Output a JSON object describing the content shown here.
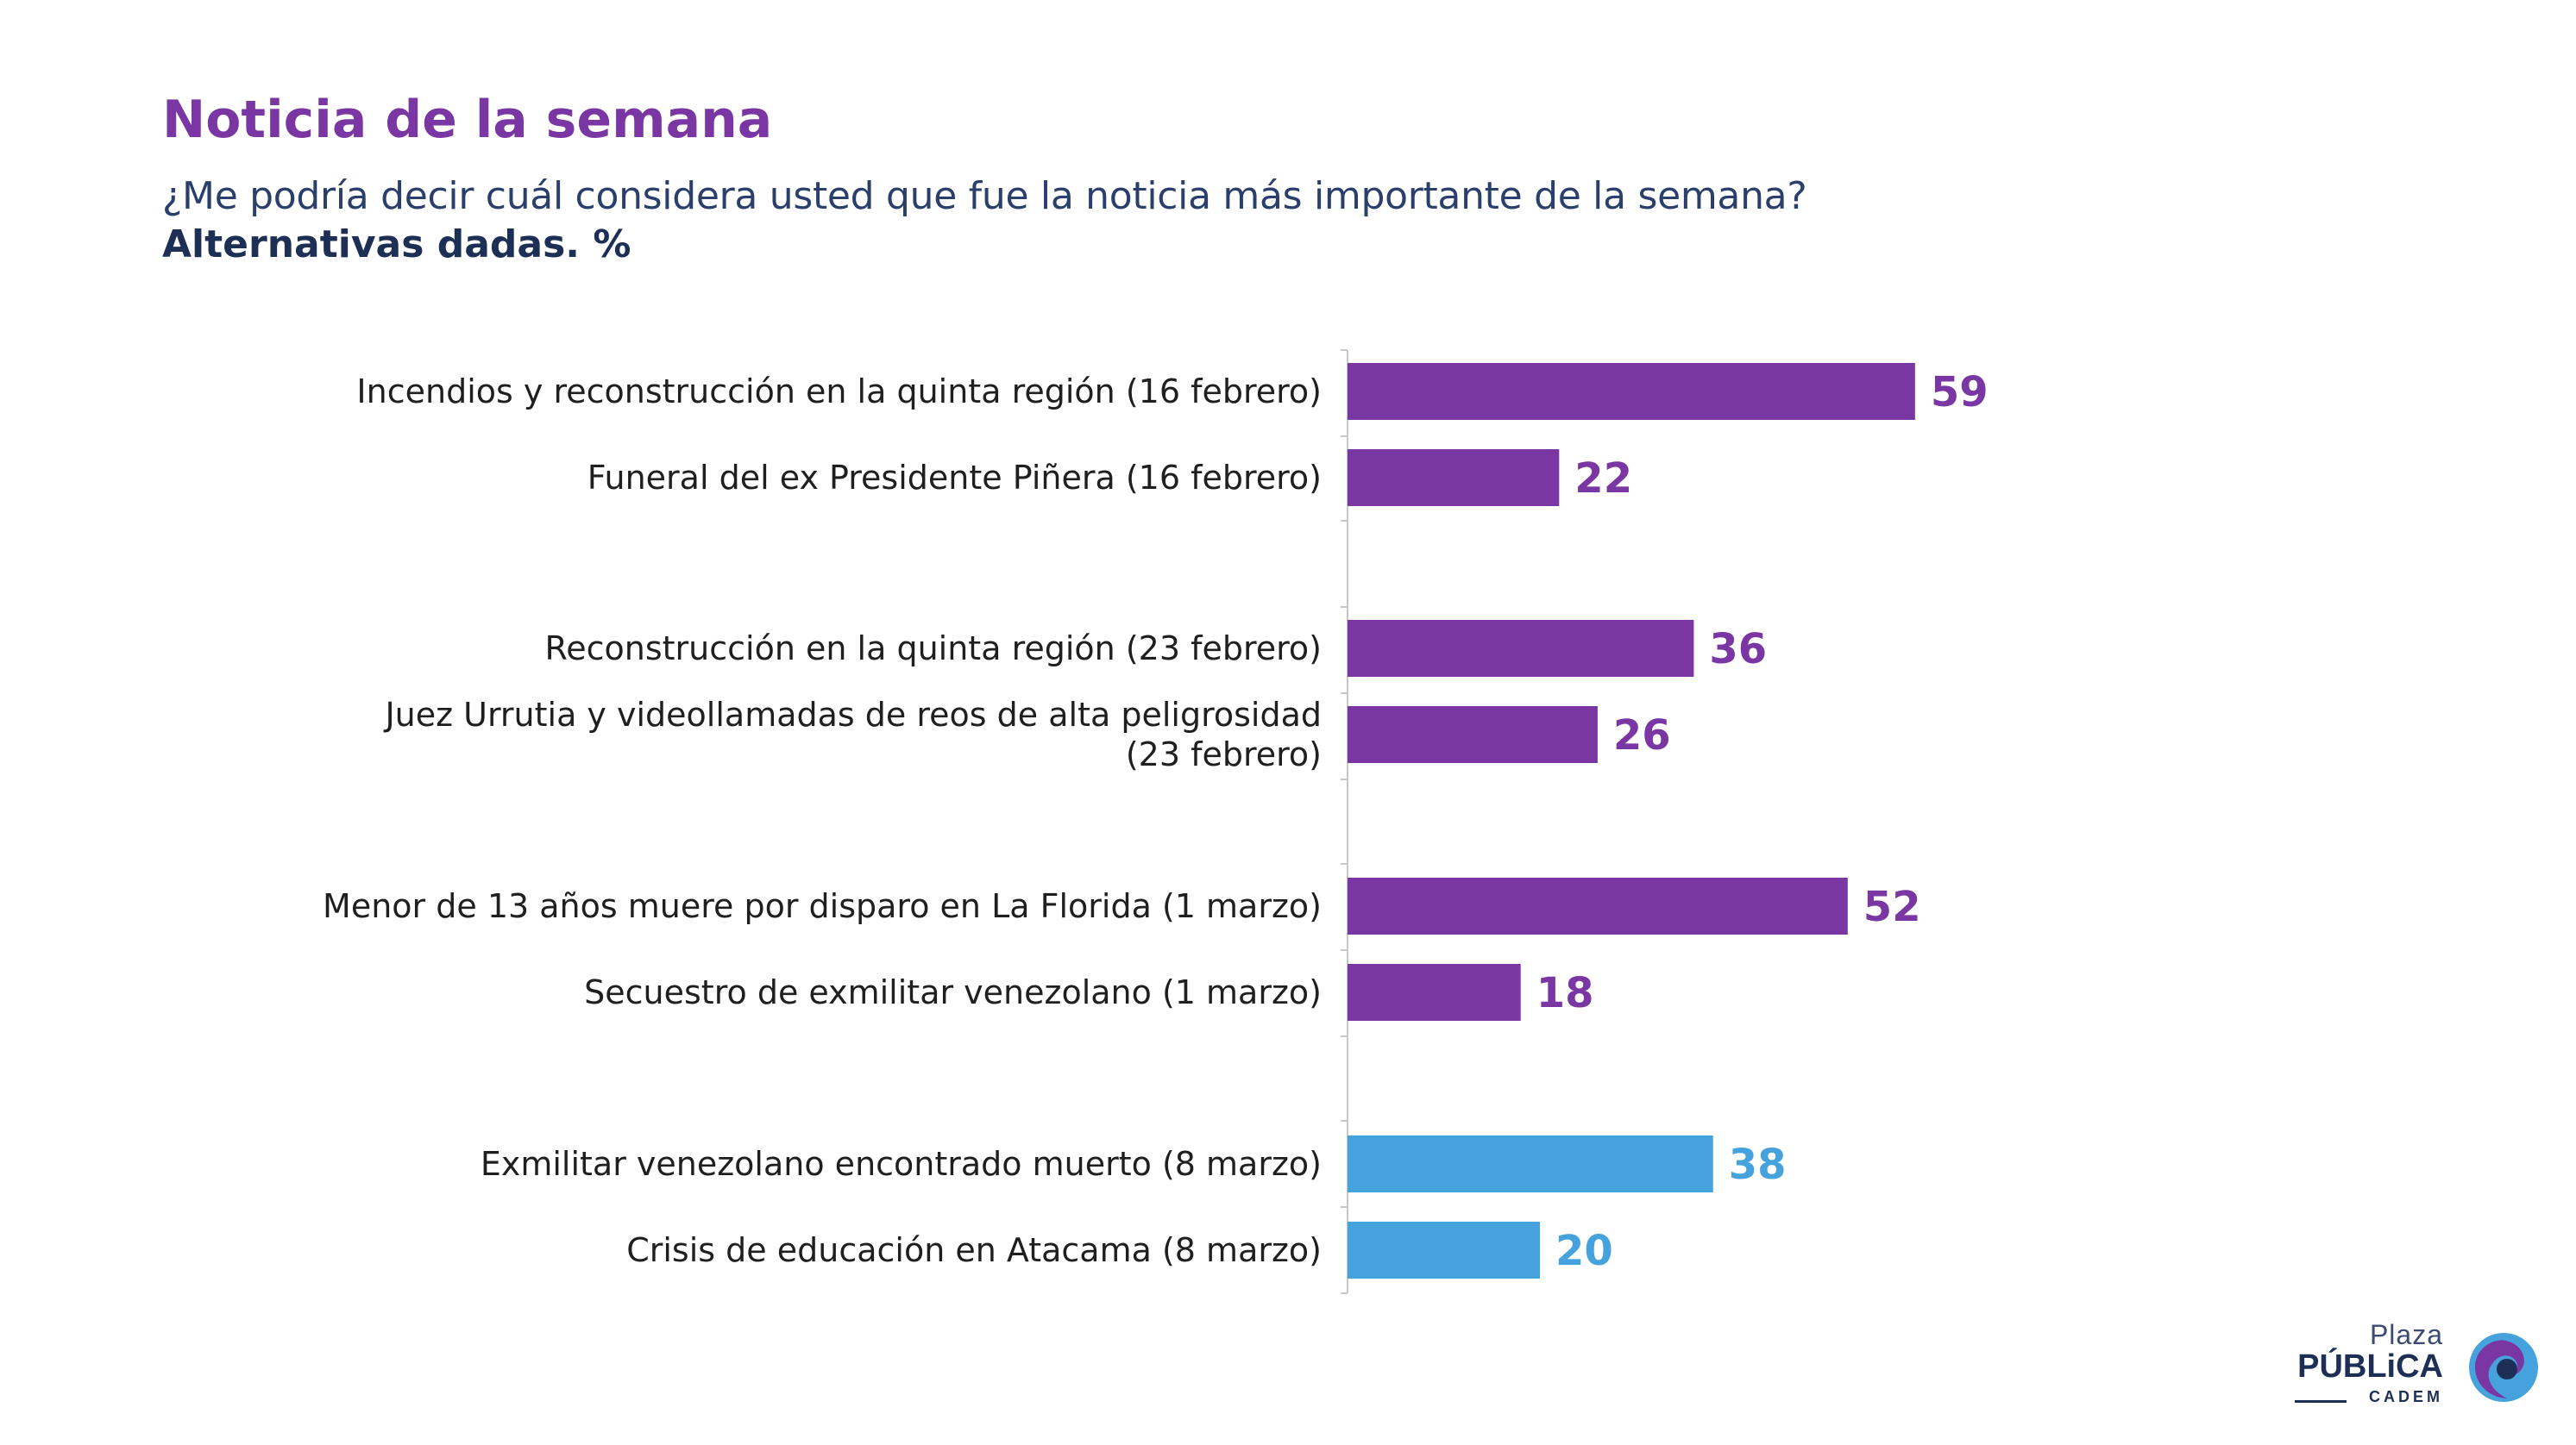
{
  "header": {
    "title": "Noticia de la semana",
    "question": "¿Me podría decir cuál considera usted que fue la noticia más importante de la semana?",
    "subtitle": "Alternativas dadas. %"
  },
  "colors": {
    "title": "#7a36a3",
    "purple_bar": "#7a36a3",
    "blue_bar": "#45a2dc",
    "question": "#2a3f6b"
  },
  "chart_data": {
    "type": "bar",
    "orientation": "horizontal",
    "title": "",
    "xlabel": "",
    "ylabel": "",
    "xlim": [
      0,
      100
    ],
    "grid": false,
    "categories": [
      [
        "Incendios y reconstrucción en la quinta región (16 febrero)"
      ],
      [
        "Funeral del ex Presidente Piñera (16 febrero)"
      ],
      [
        "Reconstrucción en la quinta región (23 febrero)"
      ],
      [
        "Juez Urrutia y videollamadas de reos de alta peligrosidad",
        "(23 febrero)"
      ],
      [
        "Menor de 13 años muere por disparo en La Florida (1 marzo)"
      ],
      [
        "Secuestro de exmilitar venezolano (1 marzo)"
      ],
      [
        "Exmilitar venezolano encontrado muerto (8 marzo)"
      ],
      [
        "Crisis de educación en Atacama (8 marzo)"
      ]
    ],
    "values": [
      59,
      22,
      36,
      26,
      52,
      18,
      38,
      20
    ],
    "value_labels": [
      "59",
      "22",
      "36",
      "26",
      "52",
      "18",
      "38",
      "20"
    ],
    "bar_colors": [
      "purple",
      "purple",
      "purple",
      "purple",
      "purple",
      "purple",
      "blue",
      "blue"
    ]
  },
  "logo": {
    "line1": "Plaza",
    "line2": "PÚBLiCA",
    "line3": "CADEM"
  }
}
